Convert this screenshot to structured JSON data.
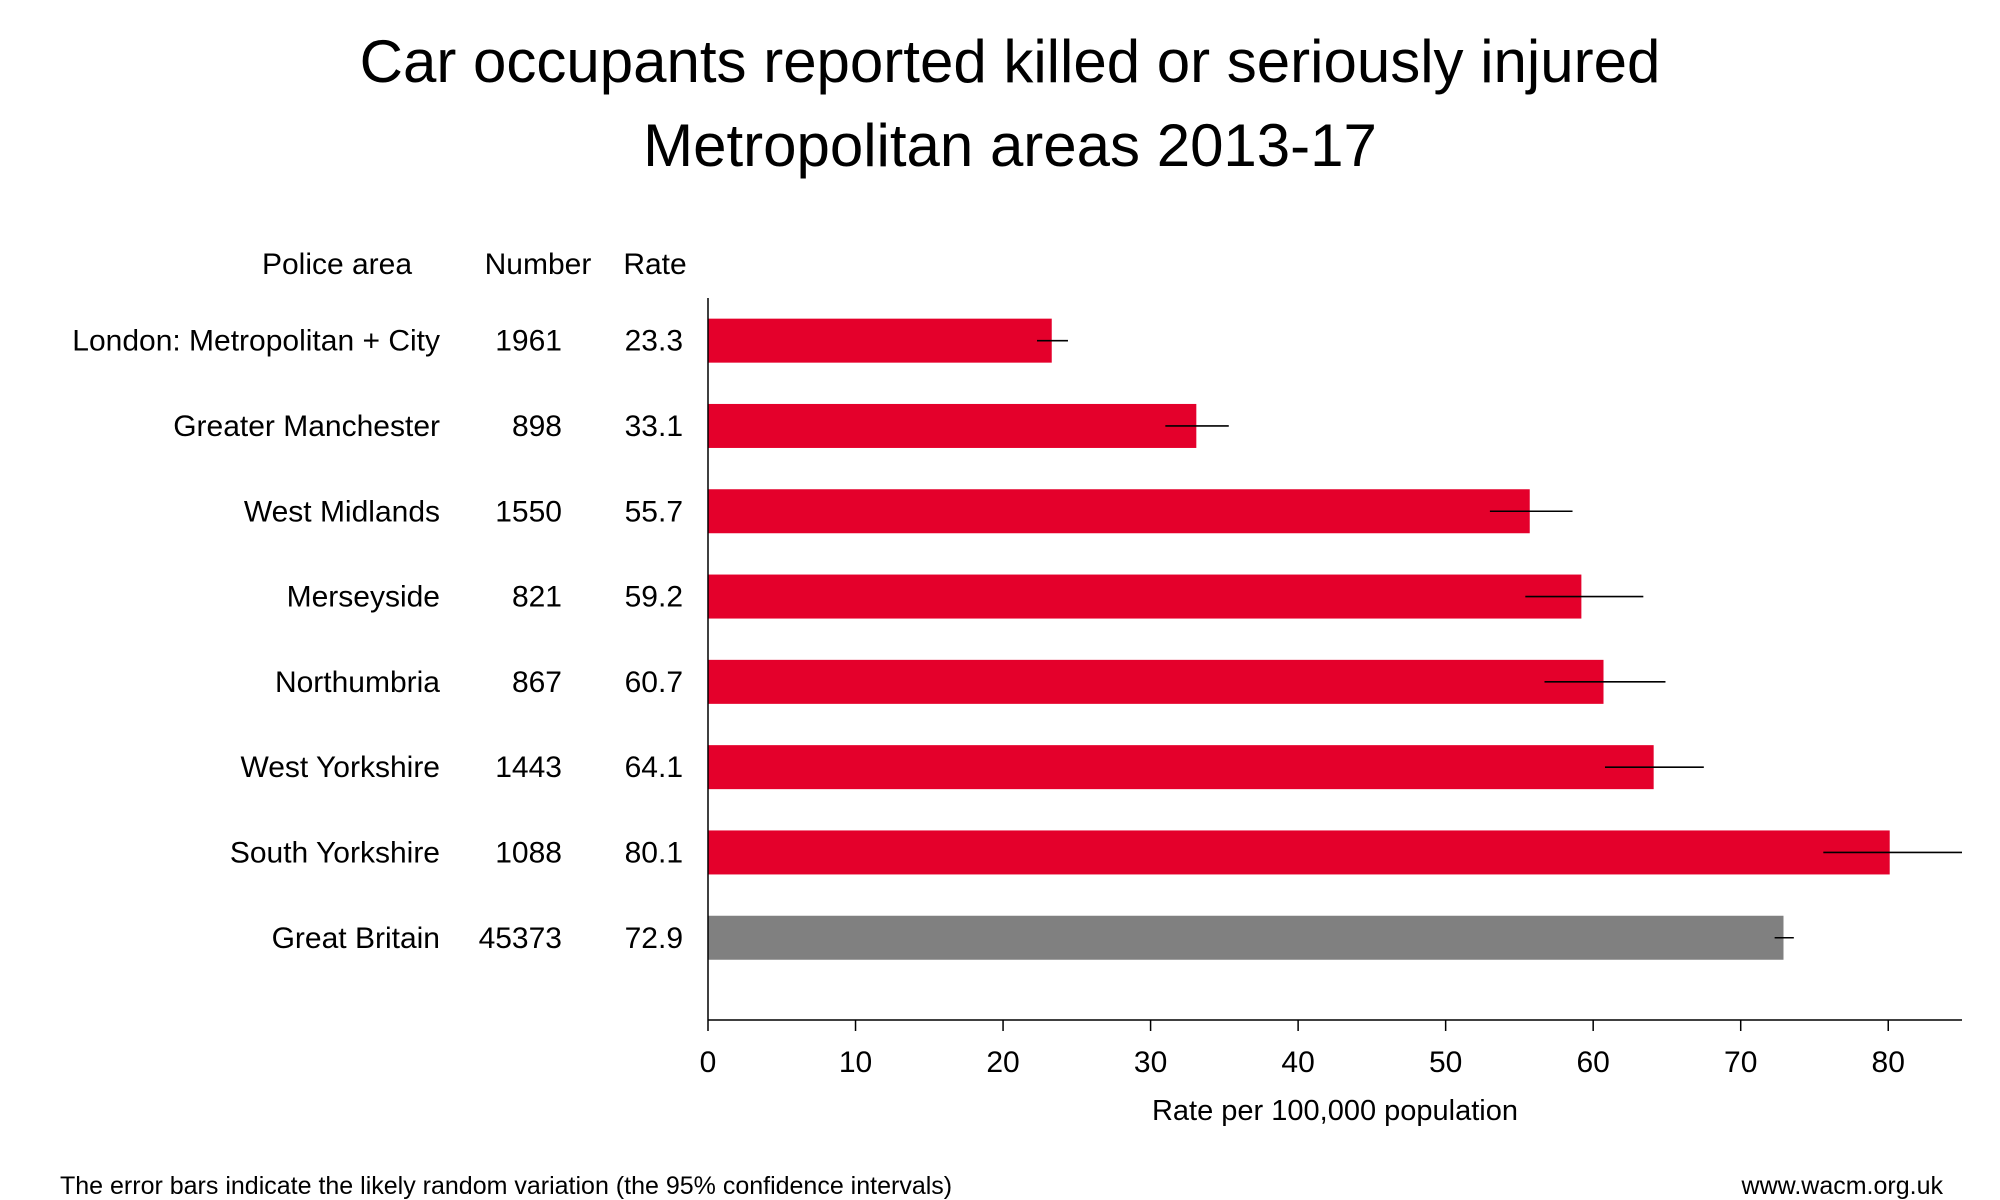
{
  "chart_data": {
    "type": "bar",
    "orientation": "horizontal",
    "title": "Car occupants reported killed or seriously injured",
    "subtitle": "Metropolitan areas 2013-17",
    "table_headers": {
      "area": "Police area",
      "number": "Number",
      "rate": "Rate"
    },
    "categories": [
      "London: Metropolitan + City",
      "Greater Manchester",
      "West Midlands",
      "Merseyside",
      "Northumbria",
      "West Yorkshire",
      "South Yorkshire",
      "Great Britain"
    ],
    "numbers": [
      "1961",
      "898",
      "1550",
      "821",
      "867",
      "1443",
      "1088",
      "45373"
    ],
    "rate_labels": [
      "23.3",
      "33.1",
      "55.7",
      "59.2",
      "60.7",
      "64.1",
      "80.1",
      "72.9"
    ],
    "values": [
      23.3,
      33.1,
      55.7,
      59.2,
      60.7,
      64.1,
      80.1,
      72.9
    ],
    "ci_low": [
      22.3,
      31.0,
      53.0,
      55.4,
      56.7,
      60.8,
      75.6,
      72.3
    ],
    "ci_high": [
      24.4,
      35.3,
      58.6,
      63.4,
      64.9,
      67.5,
      85.0,
      73.6
    ],
    "bar_colors": [
      "#e4002b",
      "#e4002b",
      "#e4002b",
      "#e4002b",
      "#e4002b",
      "#e4002b",
      "#e4002b",
      "#808080"
    ],
    "xlabel": "Rate per 100,000 population",
    "xlim": [
      0,
      85
    ],
    "xticks": [
      0,
      10,
      20,
      30,
      40,
      50,
      60,
      70,
      80
    ],
    "grid": false,
    "footnote": "The error bars indicate the likely random variation (the 95% confidence intervals)",
    "source": "www.wacm.org.uk"
  }
}
